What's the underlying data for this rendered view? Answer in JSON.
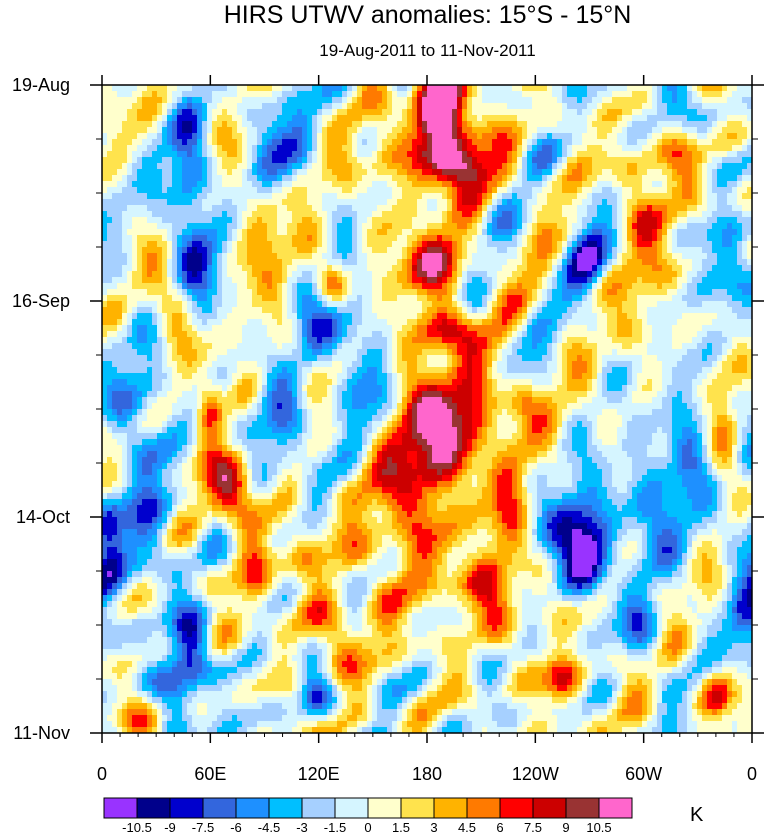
{
  "chart_data": {
    "type": "heatmap",
    "title": "HIRS UTWV anomalies: 15°S - 15°N",
    "subtitle": "19-Aug-2011 to 11-Nov-2011",
    "units": "K",
    "x_ticks": [
      "0",
      "60E",
      "120E",
      "180",
      "120W",
      "60W",
      "0"
    ],
    "x_values": [
      0,
      60,
      120,
      180,
      240,
      300,
      360
    ],
    "x_range": [
      0,
      360
    ],
    "y_ticks": [
      "19-Aug",
      "16-Sep",
      "14-Oct",
      "11-Nov"
    ],
    "y_values": [
      0,
      28,
      56,
      84
    ],
    "y_range": [
      0,
      84
    ],
    "colorbar_labels": [
      "-10.5",
      "-9",
      "-7.5",
      "-6",
      "-4.5",
      "-3",
      "-1.5",
      "0",
      "1.5",
      "3",
      "4.5",
      "6",
      "7.5",
      "9",
      "10.5"
    ],
    "colorbar_colors": [
      "#9933ff",
      "#00008b",
      "#0000cd",
      "#3366dd",
      "#1e90ff",
      "#00bfff",
      "#a6d0ff",
      "#d5f5ff",
      "#ffffcc",
      "#ffe34d",
      "#ffb300",
      "#ff7a00",
      "#ff0000",
      "#cc0000",
      "#993333",
      "#ff66cc"
    ],
    "blobs": [
      {
        "lon": 187,
        "day": 2,
        "val": 10.5,
        "sl": 10,
        "sd": 3
      },
      {
        "lon": 190,
        "day": 7,
        "val": 9.0,
        "sl": 14,
        "sd": 4
      },
      {
        "lon": 200,
        "day": 11,
        "val": 8.0,
        "sl": 14,
        "sd": 2
      },
      {
        "lon": 184,
        "day": 23,
        "val": 9.5,
        "sl": 12,
        "sd": 3
      },
      {
        "lon": 190,
        "day": 32,
        "val": 8.5,
        "sl": 14,
        "sd": 2
      },
      {
        "lon": 182,
        "day": 45,
        "val": 7.5,
        "sl": 14,
        "sd": 6
      },
      {
        "lon": 205,
        "day": 44,
        "val": 6.5,
        "sl": 12,
        "sd": 4
      },
      {
        "lon": 170,
        "day": 55,
        "val": 5.0,
        "sl": 20,
        "sd": 10
      },
      {
        "lon": 215,
        "day": 66,
        "val": 7.0,
        "sl": 10,
        "sd": 3
      },
      {
        "lon": 232,
        "day": 41,
        "val": 6.5,
        "sl": 8,
        "sd": 2
      },
      {
        "lon": 72,
        "day": 52,
        "val": 10.0,
        "sl": 10,
        "sd": 3
      },
      {
        "lon": 60,
        "day": 42,
        "val": 6.5,
        "sl": 5,
        "sd": 3
      },
      {
        "lon": 255,
        "day": 77,
        "val": 7.5,
        "sl": 8,
        "sd": 2
      },
      {
        "lon": 128,
        "day": 26,
        "val": 6.5,
        "sl": 6,
        "sd": 2
      },
      {
        "lon": 130,
        "day": 71,
        "val": 5.5,
        "sl": 10,
        "sd": 3
      },
      {
        "lon": 110,
        "day": 60,
        "val": 5.0,
        "sl": 8,
        "sd": 3
      },
      {
        "lon": 340,
        "day": 79,
        "val": 6.5,
        "sl": 6,
        "sd": 2
      },
      {
        "lon": 88,
        "day": 18,
        "val": 4.5,
        "sl": 10,
        "sd": 6
      },
      {
        "lon": 40,
        "day": 30,
        "val": 4.0,
        "sl": 10,
        "sd": 4
      },
      {
        "lon": 300,
        "day": 20,
        "val": 4.5,
        "sl": 10,
        "sd": 8
      },
      {
        "lon": 320,
        "day": 10,
        "val": 4.0,
        "sl": 10,
        "sd": 5
      },
      {
        "lon": 22,
        "day": 81,
        "val": 5.0,
        "sl": 10,
        "sd": 3
      },
      {
        "lon": 155,
        "day": 10,
        "val": 4.0,
        "sl": 8,
        "sd": 4
      },
      {
        "lon": 85,
        "day": 64,
        "val": 4.5,
        "sl": 8,
        "sd": 3
      },
      {
        "lon": 345,
        "day": 45,
        "val": 4.0,
        "sl": 6,
        "sd": 6
      },
      {
        "lon": 225,
        "day": 56,
        "val": 4.5,
        "sl": 8,
        "sd": 6
      },
      {
        "lon": 48,
        "day": 13,
        "val": -8.0,
        "sl": 8,
        "sd": 6
      },
      {
        "lon": 55,
        "day": 25,
        "val": -6.5,
        "sl": 8,
        "sd": 4
      },
      {
        "lon": 270,
        "day": 22,
        "val": -8.5,
        "sl": 8,
        "sd": 3
      },
      {
        "lon": 265,
        "day": 58,
        "val": -9.0,
        "sl": 12,
        "sd": 4
      },
      {
        "lon": 268,
        "day": 62,
        "val": -8.5,
        "sl": 8,
        "sd": 3
      },
      {
        "lon": 50,
        "day": 74,
        "val": -8.5,
        "sl": 8,
        "sd": 4
      },
      {
        "lon": 40,
        "day": 80,
        "val": -7.0,
        "sl": 8,
        "sd": 3
      },
      {
        "lon": 25,
        "day": 57,
        "val": -6.0,
        "sl": 10,
        "sd": 6
      },
      {
        "lon": 130,
        "day": 31,
        "val": -6.0,
        "sl": 15,
        "sd": 3
      },
      {
        "lon": 145,
        "day": 40,
        "val": -5.0,
        "sl": 12,
        "sd": 4
      },
      {
        "lon": 315,
        "day": 2,
        "val": -6.5,
        "sl": 8,
        "sd": 3
      },
      {
        "lon": 305,
        "day": 54,
        "val": -6.0,
        "sl": 12,
        "sd": 5
      },
      {
        "lon": 325,
        "day": 46,
        "val": -5.5,
        "sl": 8,
        "sd": 6
      },
      {
        "lon": 118,
        "day": 79,
        "val": -6.0,
        "sl": 6,
        "sd": 2
      },
      {
        "lon": 20,
        "day": 40,
        "val": -4.5,
        "sl": 12,
        "sd": 6
      },
      {
        "lon": 95,
        "day": 8,
        "val": -5.5,
        "sl": 12,
        "sd": 5
      },
      {
        "lon": 355,
        "day": 66,
        "val": -5.0,
        "sl": 8,
        "sd": 6
      },
      {
        "lon": 100,
        "day": 45,
        "val": -5.0,
        "sl": 12,
        "sd": 5
      },
      {
        "lon": 345,
        "day": 22,
        "val": -4.5,
        "sl": 10,
        "sd": 6
      },
      {
        "lon": 300,
        "day": 70,
        "val": -5.0,
        "sl": 8,
        "sd": 3
      },
      {
        "lon": 5,
        "day": 62,
        "val": -5.0,
        "sl": 6,
        "sd": 6
      }
    ]
  }
}
